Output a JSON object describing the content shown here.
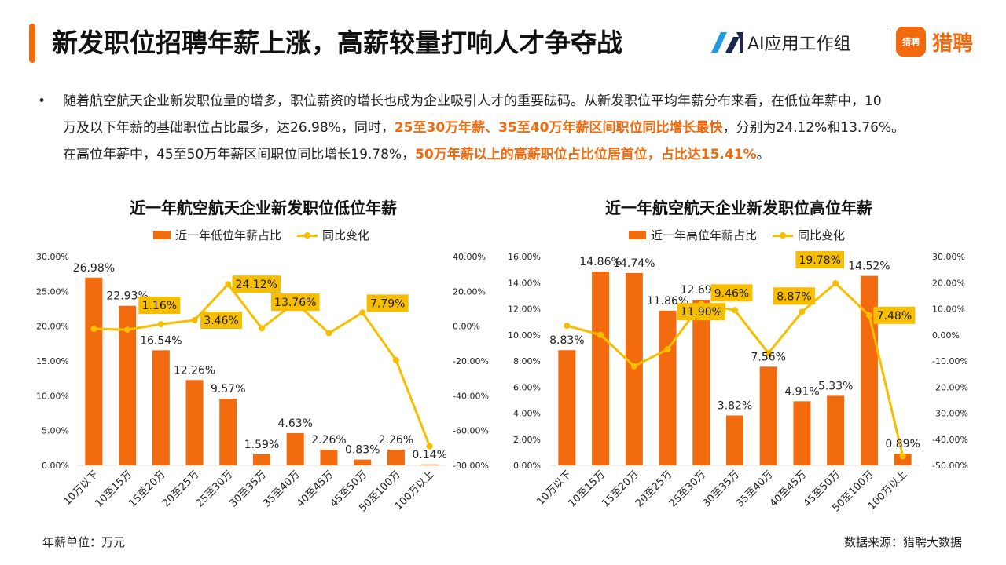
{
  "colors": {
    "accent": "#F26A0E",
    "bar": "#F26A0E",
    "line": "#F7BE00",
    "label_box": "#F7BE00",
    "highlight_text": "#F26A0E",
    "ai_logo_blue": "#1F9BE0",
    "ai_logo_dark": "#1A2A4F"
  },
  "header": {
    "title": "新发职位招聘年薪上涨，高薪较量打响人才争夺战",
    "brand_ai": "AI应用工作组",
    "brand_lp_badge": "猎聘",
    "brand_lp": "猎聘",
    "ai_logo_icon": "ai-logo-icon",
    "lp_logo_icon": "speech-bubble-icon"
  },
  "summary": {
    "bullet": "•",
    "line1": "随着航空航天企业新发职位量的增多，职位薪资的增长也成为企业吸引人才的重要砝码。从新发职位平均年薪分布来看，在低位年薪中，10",
    "line2a": "万及以下年薪的基础职位占比最多，达26.98%，同时，",
    "line2b": "25至30万年薪、35至40万年薪区间职位同比增长最快",
    "line2c": "，分别为24.12%和13.76%。",
    "line3a": "在高位年薪中，45至50万年薪区间职位同比增长19.78%，",
    "line3b": "50万年薪以上的高薪职位占比位居首位，占比达15.41%",
    "line3c": "。"
  },
  "footer": {
    "unit_note": "年薪单位：万元",
    "source": "数据来源：猎聘大数据"
  },
  "chart_data": [
    {
      "type": "bar",
      "title": "近一年航空航天企业新发职位低位年薪",
      "categories": [
        "10万以下",
        "10至15万",
        "15至20万",
        "20至25万",
        "25至30万",
        "30至35万",
        "35至40万",
        "40至45万",
        "45至50万",
        "50至100万",
        "100万以上"
      ],
      "series": [
        {
          "name": "近一年低位年薪占比",
          "kind": "bar",
          "axis": "left",
          "values": [
            26.98,
            22.93,
            16.54,
            12.26,
            9.57,
            1.59,
            4.63,
            2.26,
            0.83,
            2.26,
            0.14
          ],
          "labels": [
            "26.98%",
            "22.93%",
            "16.54%",
            "12.26%",
            "9.57%",
            "1.59%",
            "4.63%",
            "2.26%",
            "0.83%",
            "2.26%",
            "0.14%"
          ]
        },
        {
          "name": "同比变化",
          "kind": "line",
          "axis": "right",
          "values": [
            -1.5,
            -2.0,
            1.16,
            3.46,
            24.12,
            -1.2,
            13.76,
            -4.0,
            7.79,
            -19.5,
            -69.0
          ],
          "labels": [
            "",
            "",
            "1.16%",
            "3.46%",
            "24.12%",
            "",
            "13.76%",
            "",
            "7.79%",
            "",
            ""
          ]
        }
      ],
      "ylim_left": [
        0,
        30
      ],
      "yticks_left": [
        "0.00%",
        "5.00%",
        "10.00%",
        "15.00%",
        "20.00%",
        "25.00%",
        "30.00%"
      ],
      "ylim_right": [
        -80,
        40
      ],
      "yticks_right": [
        "-80.00%",
        "-60.00%",
        "-40.00%",
        "-20.00%",
        "0.00%",
        "20.00%",
        "40.00%"
      ],
      "legend": "top",
      "grid": false
    },
    {
      "type": "bar",
      "title": "近一年航空航天企业新发职位高位年薪",
      "categories": [
        "10万以下",
        "10至15万",
        "15至20万",
        "20至25万",
        "25至30万",
        "30至35万",
        "35至40万",
        "40至45万",
        "45至50万",
        "50至100万",
        "100万以上"
      ],
      "series": [
        {
          "name": "近一年高位年薪占比",
          "kind": "bar",
          "axis": "left",
          "values": [
            8.83,
            14.86,
            14.74,
            11.86,
            12.69,
            3.82,
            7.56,
            4.91,
            5.33,
            14.52,
            0.89
          ],
          "labels": [
            "8.83%",
            "14.86%",
            "14.74%",
            "11.86%",
            "12.69%",
            "3.82%",
            "7.56%",
            "4.91%",
            "5.33%",
            "14.52%",
            "0.89%"
          ]
        },
        {
          "name": "同比变化",
          "kind": "line",
          "axis": "right",
          "values": [
            3.5,
            0.0,
            -12.0,
            -5.5,
            11.9,
            9.46,
            -7.0,
            8.87,
            19.78,
            7.48,
            -46.5
          ],
          "labels": [
            "",
            "",
            "",
            "",
            "11.90%",
            "9.46%",
            "",
            "8.87%",
            "19.78%",
            "7.48%",
            ""
          ]
        }
      ],
      "ylim_left": [
        0,
        16
      ],
      "yticks_left": [
        "0.00%",
        "2.00%",
        "4.00%",
        "6.00%",
        "8.00%",
        "10.00%",
        "12.00%",
        "14.00%",
        "16.00%"
      ],
      "ylim_right": [
        -50,
        30
      ],
      "yticks_right": [
        "-50.00%",
        "-40.00%",
        "-30.00%",
        "-20.00%",
        "-10.00%",
        "0.00%",
        "10.00%",
        "20.00%",
        "30.00%"
      ],
      "legend": "top",
      "grid": false
    }
  ]
}
